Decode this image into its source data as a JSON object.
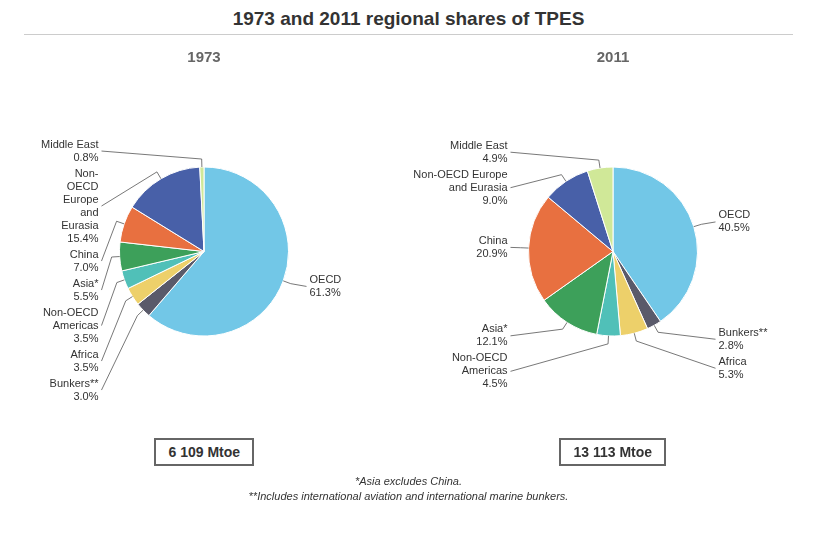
{
  "title": "1973 and 2011 regional shares of TPES",
  "annotations": [
    "*Asia excludes China.",
    "**Includes international aviation and international marine bunkers."
  ],
  "chart_data": [
    {
      "type": "pie",
      "title": "1973",
      "categories": [
        "OECD",
        "Bunkers**",
        "Africa",
        "Non-OECD\nAmericas",
        "Asia*",
        "China",
        "Non-\nOECD\nEurope\nand\nEurasia",
        "Middle East"
      ],
      "values": [
        61.3,
        3.0,
        3.5,
        3.5,
        5.5,
        7.0,
        15.4,
        0.8
      ],
      "value_labels": [
        "61.3%",
        "3.0%",
        "3.5%",
        "3.5%",
        "5.5%",
        "7.0%",
        "15.4%",
        "0.8%"
      ],
      "colors": [
        "#72C7E7",
        "#5A5A6A",
        "#EDD06A",
        "#50C0B8",
        "#3DA05A",
        "#E87040",
        "#4860A8",
        "#D0E898"
      ],
      "data_labels": true,
      "annotations": [
        "6 109 Mtoe"
      ]
    },
    {
      "type": "pie",
      "title": "2011",
      "categories": [
        "OECD",
        "Bunkers**",
        "Africa",
        "Non-OECD\nAmericas",
        "Asia*",
        "China",
        "Non-OECD Europe\nand Eurasia",
        "Middle East"
      ],
      "values": [
        40.5,
        2.8,
        5.3,
        4.5,
        12.1,
        20.9,
        9.0,
        4.9
      ],
      "value_labels": [
        "40.5%",
        "2.8%",
        "5.3%",
        "4.5%",
        "12.1%",
        "20.9%",
        "9.0%",
        "4.9%"
      ],
      "colors": [
        "#72C7E7",
        "#5A5A6A",
        "#EDD06A",
        "#50C0B8",
        "#3DA05A",
        "#E87040",
        "#4860A8",
        "#D0E898"
      ],
      "data_labels": true,
      "annotations": [
        "13 113 Mtoe"
      ]
    }
  ]
}
